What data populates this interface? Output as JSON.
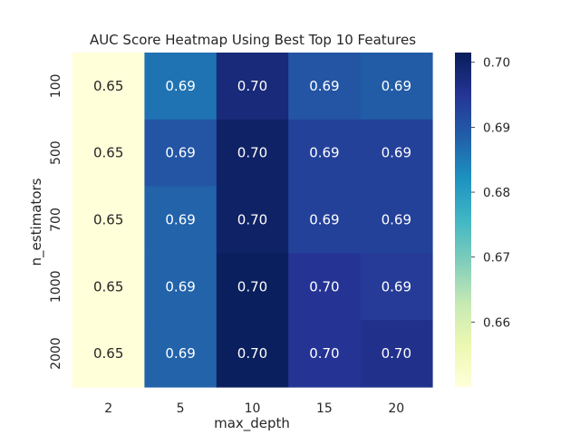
{
  "chart_data": {
    "type": "heatmap",
    "title": "AUC Score Heatmap Using Best Top 10 Features",
    "xlabel": "max_depth",
    "ylabel": "n_estimators",
    "x_categories": [
      "2",
      "5",
      "10",
      "15",
      "20"
    ],
    "y_categories": [
      "100",
      "500",
      "700",
      "1000",
      "2000"
    ],
    "values": [
      [
        0.65,
        0.686,
        0.698,
        0.69,
        0.689
      ],
      [
        0.65,
        0.69,
        0.7,
        0.693,
        0.693
      ],
      [
        0.65,
        0.688,
        0.7,
        0.693,
        0.693
      ],
      [
        0.65,
        0.688,
        0.701,
        0.695,
        0.694
      ],
      [
        0.65,
        0.688,
        0.701,
        0.695,
        0.696
      ]
    ],
    "labels": [
      [
        "0.65",
        "0.69",
        "0.70",
        "0.69",
        "0.69"
      ],
      [
        "0.65",
        "0.69",
        "0.70",
        "0.69",
        "0.69"
      ],
      [
        "0.65",
        "0.69",
        "0.70",
        "0.69",
        "0.69"
      ],
      [
        "0.65",
        "0.69",
        "0.70",
        "0.70",
        "0.69"
      ],
      [
        "0.65",
        "0.69",
        "0.70",
        "0.70",
        "0.70"
      ]
    ],
    "colormap": "YlGnBu",
    "colorbar": {
      "vmin": 0.65,
      "vmax": 0.7015,
      "ticks": [
        0.66,
        0.67,
        0.68,
        0.69,
        0.7
      ],
      "tick_labels": [
        "0.66",
        "0.67",
        "0.68",
        "0.69",
        "0.70"
      ]
    }
  }
}
